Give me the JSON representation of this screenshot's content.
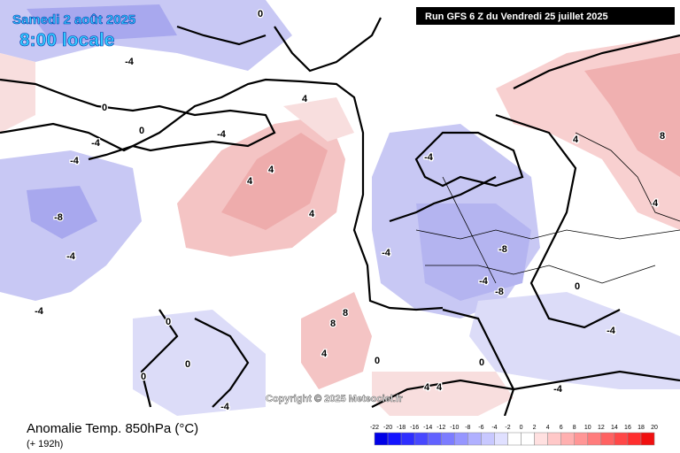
{
  "header": {
    "date": "Samedi 2 août 2025",
    "time": "8:00 locale",
    "run": "Run GFS 6 Z du Vendredi 25 juillet 2025"
  },
  "copyright": "Copyright © 2025 Meteociel.fr",
  "footer": {
    "title": "Anomalie Temp. 850hPa (°C)",
    "lead": "(+ 192h)"
  },
  "legend": {
    "ticks": [
      -22,
      -20,
      -18,
      -16,
      -14,
      -12,
      -10,
      -8,
      -6,
      -4,
      -2,
      0,
      2,
      4,
      6,
      8,
      10,
      12,
      14,
      16,
      18,
      20
    ],
    "colors": [
      "#0000e6",
      "#1414ff",
      "#2e2eff",
      "#4848ff",
      "#6262ff",
      "#7c7cff",
      "#9696ff",
      "#b0b0ff",
      "#c8c8ff",
      "#e0e0ff",
      "#ffffff",
      "#ffffff",
      "#ffe0e0",
      "#ffc8c8",
      "#ffb0b0",
      "#ff9696",
      "#ff7c7c",
      "#ff6262",
      "#ff4848",
      "#ff2e2e",
      "#f01010"
    ]
  },
  "contour_labels": [
    "0",
    "-4",
    "0",
    "-4",
    "-4",
    "0",
    "-4",
    "4",
    "4",
    "4",
    "-8",
    "-4",
    "-4",
    "4",
    "8",
    "-4",
    "4",
    "-8",
    "-4",
    "-8",
    "-4",
    "0",
    "8",
    "8",
    "4",
    "0",
    "0",
    "-4",
    "4",
    "4",
    "-4",
    "0",
    "4",
    "-4",
    "0",
    "0"
  ]
}
